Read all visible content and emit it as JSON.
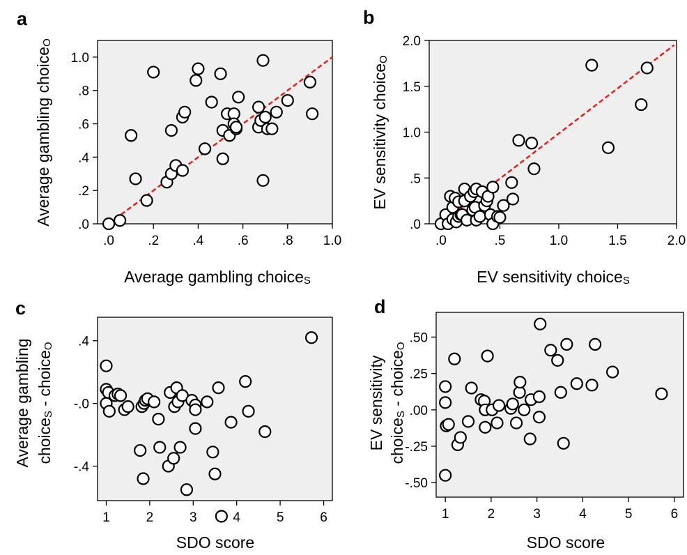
{
  "chart_data": [
    {
      "panel": "a",
      "type": "scatter",
      "xlabel": "Average gambling choice",
      "xlabel_sub": "S",
      "ylabel": "Average gambling choice",
      "ylabel_sub": "O",
      "xlim": [
        -0.05,
        1.0
      ],
      "ylim": [
        0,
        1.1
      ],
      "xticks": [
        0,
        0.2,
        0.4,
        0.6,
        0.8,
        1.0
      ],
      "xtick_labels": [
        ".0",
        ".2",
        ".4",
        ".6",
        ".8",
        "1.0"
      ],
      "yticks": [
        0,
        0.2,
        0.4,
        0.6,
        0.8,
        1.0
      ],
      "ytick_labels": [
        ".0",
        ".2",
        ".4",
        ".6",
        ".8",
        "1.0"
      ],
      "reference_line": {
        "style": "dashed",
        "color": "#e0221b",
        "from": [
          0,
          0
        ],
        "to": [
          1.0,
          1.0
        ]
      },
      "points": [
        [
          0.0,
          0.0
        ],
        [
          0.05,
          0.02
        ],
        [
          0.1,
          0.53
        ],
        [
          0.12,
          0.27
        ],
        [
          0.17,
          0.14
        ],
        [
          0.2,
          0.91
        ],
        [
          0.26,
          0.25
        ],
        [
          0.28,
          0.3
        ],
        [
          0.28,
          0.56
        ],
        [
          0.3,
          0.35
        ],
        [
          0.33,
          0.32
        ],
        [
          0.33,
          0.64
        ],
        [
          0.34,
          0.67
        ],
        [
          0.39,
          0.86
        ],
        [
          0.4,
          0.93
        ],
        [
          0.43,
          0.45
        ],
        [
          0.46,
          0.73
        ],
        [
          0.5,
          0.9
        ],
        [
          0.51,
          0.39
        ],
        [
          0.51,
          0.56
        ],
        [
          0.53,
          0.66
        ],
        [
          0.54,
          0.53
        ],
        [
          0.56,
          0.66
        ],
        [
          0.56,
          0.6
        ],
        [
          0.57,
          0.57
        ],
        [
          0.57,
          0.58
        ],
        [
          0.58,
          0.76
        ],
        [
          0.67,
          0.58
        ],
        [
          0.67,
          0.7
        ],
        [
          0.68,
          0.62
        ],
        [
          0.69,
          0.26
        ],
        [
          0.69,
          0.98
        ],
        [
          0.7,
          0.64
        ],
        [
          0.71,
          0.57
        ],
        [
          0.73,
          0.57
        ],
        [
          0.75,
          0.67
        ],
        [
          0.8,
          0.74
        ],
        [
          0.9,
          0.85
        ],
        [
          0.91,
          0.66
        ]
      ]
    },
    {
      "panel": "b",
      "type": "scatter",
      "xlabel": "EV sensitivity choice",
      "xlabel_sub": "S",
      "ylabel": "EV sensitivity choice",
      "ylabel_sub": "O",
      "xlim": [
        -0.1,
        2.0
      ],
      "ylim": [
        0,
        2.0
      ],
      "xticks": [
        0,
        0.5,
        1.0,
        1.5,
        2.0
      ],
      "xtick_labels": [
        ".0",
        ".5",
        "1.0",
        "1.5",
        "2.0"
      ],
      "yticks": [
        0,
        0.5,
        1.0,
        1.5,
        2.0
      ],
      "ytick_labels": [
        ".0",
        ".5",
        "1.0",
        "1.5",
        "2.0"
      ],
      "reference_line": {
        "style": "dashed",
        "color": "#e0221b",
        "from": [
          0,
          0
        ],
        "to": [
          1.98,
          1.95
        ]
      },
      "points": [
        [
          0.0,
          0.0
        ],
        [
          0.04,
          0.1
        ],
        [
          0.06,
          0.0
        ],
        [
          0.08,
          0.3
        ],
        [
          0.1,
          0.18
        ],
        [
          0.1,
          0.05
        ],
        [
          0.12,
          0.28
        ],
        [
          0.13,
          0.02
        ],
        [
          0.15,
          0.08
        ],
        [
          0.15,
          0.24
        ],
        [
          0.17,
          0.1
        ],
        [
          0.18,
          0.1
        ],
        [
          0.2,
          0.38
        ],
        [
          0.2,
          0.25
        ],
        [
          0.22,
          0.04
        ],
        [
          0.25,
          0.3
        ],
        [
          0.27,
          0.15
        ],
        [
          0.28,
          0.35
        ],
        [
          0.29,
          0.18
        ],
        [
          0.3,
          0.04
        ],
        [
          0.3,
          0.38
        ],
        [
          0.33,
          0.08
        ],
        [
          0.35,
          0.35
        ],
        [
          0.37,
          0.2
        ],
        [
          0.39,
          0.25
        ],
        [
          0.4,
          0.3
        ],
        [
          0.42,
          0.1
        ],
        [
          0.44,
          0.4
        ],
        [
          0.44,
          0.0
        ],
        [
          0.48,
          0.08
        ],
        [
          0.5,
          0.07
        ],
        [
          0.53,
          0.2
        ],
        [
          0.6,
          0.45
        ],
        [
          0.61,
          0.27
        ],
        [
          0.66,
          0.91
        ],
        [
          0.77,
          0.88
        ],
        [
          0.79,
          0.6
        ],
        [
          1.28,
          1.73
        ],
        [
          1.42,
          0.83
        ],
        [
          1.7,
          1.3
        ],
        [
          1.75,
          1.7
        ]
      ]
    },
    {
      "panel": "c",
      "type": "scatter",
      "xlabel": "SDO score",
      "ylabel_line1": "Average gambling",
      "ylabel_line2": "choice",
      "ylabel_sub1": "S",
      "ylabel_mid": " - choice",
      "ylabel_sub2": "O",
      "xlim": [
        0.8,
        6.2
      ],
      "ylim": [
        -0.62,
        0.55
      ],
      "xticks": [
        1,
        2,
        3,
        4,
        5,
        6
      ],
      "xtick_labels": [
        "1",
        "2",
        "3",
        "4",
        "5",
        "6"
      ],
      "yticks": [
        0.4,
        0.0,
        -0.4
      ],
      "ytick_labels": [
        ".4",
        "-.0",
        "-.4"
      ],
      "points": [
        [
          1.0,
          0.24
        ],
        [
          1.0,
          0.09
        ],
        [
          1.0,
          0.0
        ],
        [
          1.05,
          0.07
        ],
        [
          1.07,
          -0.05
        ],
        [
          1.2,
          0.05
        ],
        [
          1.27,
          0.06
        ],
        [
          1.33,
          0.05
        ],
        [
          1.42,
          -0.04
        ],
        [
          1.5,
          -0.02
        ],
        [
          1.78,
          -0.3
        ],
        [
          1.82,
          -0.02
        ],
        [
          1.85,
          -0.48
        ],
        [
          1.87,
          0.0
        ],
        [
          1.9,
          0.02
        ],
        [
          1.95,
          0.03
        ],
        [
          2.1,
          0.01
        ],
        [
          2.2,
          -0.1
        ],
        [
          2.23,
          -0.28
        ],
        [
          2.43,
          -0.4
        ],
        [
          2.47,
          0.07
        ],
        [
          2.55,
          -0.35
        ],
        [
          2.57,
          -0.02
        ],
        [
          2.62,
          0.1
        ],
        [
          2.65,
          0.01
        ],
        [
          2.7,
          -0.28
        ],
        [
          2.75,
          0.05
        ],
        [
          2.85,
          -0.55
        ],
        [
          2.97,
          0.02
        ],
        [
          3.05,
          -0.01
        ],
        [
          3.05,
          -0.04
        ],
        [
          3.05,
          -0.16
        ],
        [
          3.32,
          0.01
        ],
        [
          3.45,
          -0.31
        ],
        [
          3.5,
          -0.45
        ],
        [
          3.58,
          0.1
        ],
        [
          3.65,
          -0.72
        ],
        [
          3.87,
          -0.12
        ],
        [
          4.2,
          0.14
        ],
        [
          4.27,
          -0.05
        ],
        [
          4.65,
          -0.18
        ],
        [
          5.72,
          0.42
        ]
      ]
    },
    {
      "panel": "d",
      "type": "scatter",
      "xlabel": "SDO score",
      "ylabel_line1": "EV sensitivity",
      "ylabel_line2": "choice",
      "ylabel_sub1": "S",
      "ylabel_mid": " - choice",
      "ylabel_sub2": "O",
      "xlim": [
        0.8,
        6.2
      ],
      "ylim": [
        -0.6,
        0.67
      ],
      "xticks": [
        1,
        2,
        3,
        4,
        5,
        6
      ],
      "xtick_labels": [
        "1",
        "2",
        "3",
        "4",
        "5",
        "6"
      ],
      "yticks": [
        0.5,
        0.25,
        0.0,
        -0.25,
        -0.5
      ],
      "ytick_labels": [
        ".50",
        ".25",
        ".00",
        "-.25",
        "-.50"
      ],
      "points": [
        [
          1.0,
          0.16
        ],
        [
          1.0,
          0.05
        ],
        [
          1.0,
          -0.45
        ],
        [
          1.02,
          -0.11
        ],
        [
          1.07,
          -0.1
        ],
        [
          1.2,
          0.35
        ],
        [
          1.27,
          -0.24
        ],
        [
          1.33,
          -0.19
        ],
        [
          1.5,
          -0.08
        ],
        [
          1.57,
          0.15
        ],
        [
          1.78,
          0.07
        ],
        [
          1.85,
          0.06
        ],
        [
          1.87,
          -0.12
        ],
        [
          1.87,
          0.0
        ],
        [
          1.92,
          0.37
        ],
        [
          2.02,
          0.0
        ],
        [
          2.13,
          -0.09
        ],
        [
          2.17,
          0.03
        ],
        [
          2.43,
          0.01
        ],
        [
          2.47,
          0.04
        ],
        [
          2.55,
          -0.09
        ],
        [
          2.62,
          0.12
        ],
        [
          2.63,
          0.19
        ],
        [
          2.72,
          0.0
        ],
        [
          2.85,
          -0.2
        ],
        [
          2.87,
          0.07
        ],
        [
          3.05,
          0.09
        ],
        [
          3.05,
          -0.05
        ],
        [
          3.07,
          0.59
        ],
        [
          3.3,
          0.41
        ],
        [
          3.45,
          0.34
        ],
        [
          3.52,
          0.12
        ],
        [
          3.58,
          -0.23
        ],
        [
          3.65,
          0.45
        ],
        [
          3.87,
          0.18
        ],
        [
          4.2,
          0.17
        ],
        [
          4.27,
          0.45
        ],
        [
          4.65,
          0.26
        ],
        [
          5.72,
          0.11
        ]
      ]
    }
  ]
}
